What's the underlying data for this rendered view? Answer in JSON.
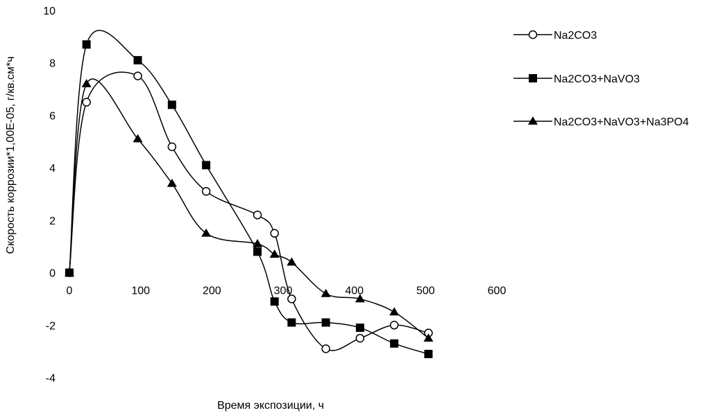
{
  "chart_data": {
    "type": "line",
    "title": "",
    "xlabel": "Время экспозиции, ч",
    "ylabel": "Скорость коррозии*1,00Е-05, г/кв.см*ч",
    "xlim": [
      0,
      600
    ],
    "ylim": [
      -4,
      10
    ],
    "x_ticks": [
      0,
      100,
      200,
      300,
      400,
      500,
      600
    ],
    "y_ticks": [
      -4,
      -2,
      0,
      2,
      4,
      6,
      8,
      10
    ],
    "x_tick_labels": [
      "0",
      "100",
      "200",
      "300",
      "400",
      "500",
      "600"
    ],
    "y_tick_labels": [
      "-4",
      "-2",
      "0",
      "2",
      "4",
      "6",
      "8",
      "10"
    ],
    "grid": false,
    "legend_position": "right",
    "series": [
      {
        "name": "Na2CO3",
        "marker": "circle-open",
        "x": [
          0,
          24,
          96,
          144,
          192,
          264,
          288,
          312,
          360,
          408,
          456,
          504
        ],
        "y": [
          0,
          6.5,
          7.5,
          4.8,
          3.1,
          2.2,
          1.5,
          -1.0,
          -2.9,
          -2.5,
          -2.0,
          -2.3
        ]
      },
      {
        "name": "Na2CO3+NaVO3",
        "marker": "square-filled",
        "x": [
          0,
          24,
          96,
          144,
          192,
          264,
          288,
          312,
          360,
          408,
          456,
          504
        ],
        "y": [
          0,
          8.7,
          8.1,
          6.4,
          4.1,
          0.8,
          -1.1,
          -1.9,
          -1.9,
          -2.1,
          -2.7,
          -3.1
        ]
      },
      {
        "name": "Na2CO3+NaVO3+Na3PO4",
        "marker": "triangle-filled",
        "x": [
          0,
          24,
          96,
          144,
          192,
          264,
          288,
          312,
          360,
          408,
          456,
          504
        ],
        "y": [
          0,
          7.2,
          5.1,
          3.4,
          1.5,
          1.1,
          0.7,
          0.4,
          -0.8,
          -1.0,
          -1.5,
          -2.5
        ]
      }
    ]
  }
}
